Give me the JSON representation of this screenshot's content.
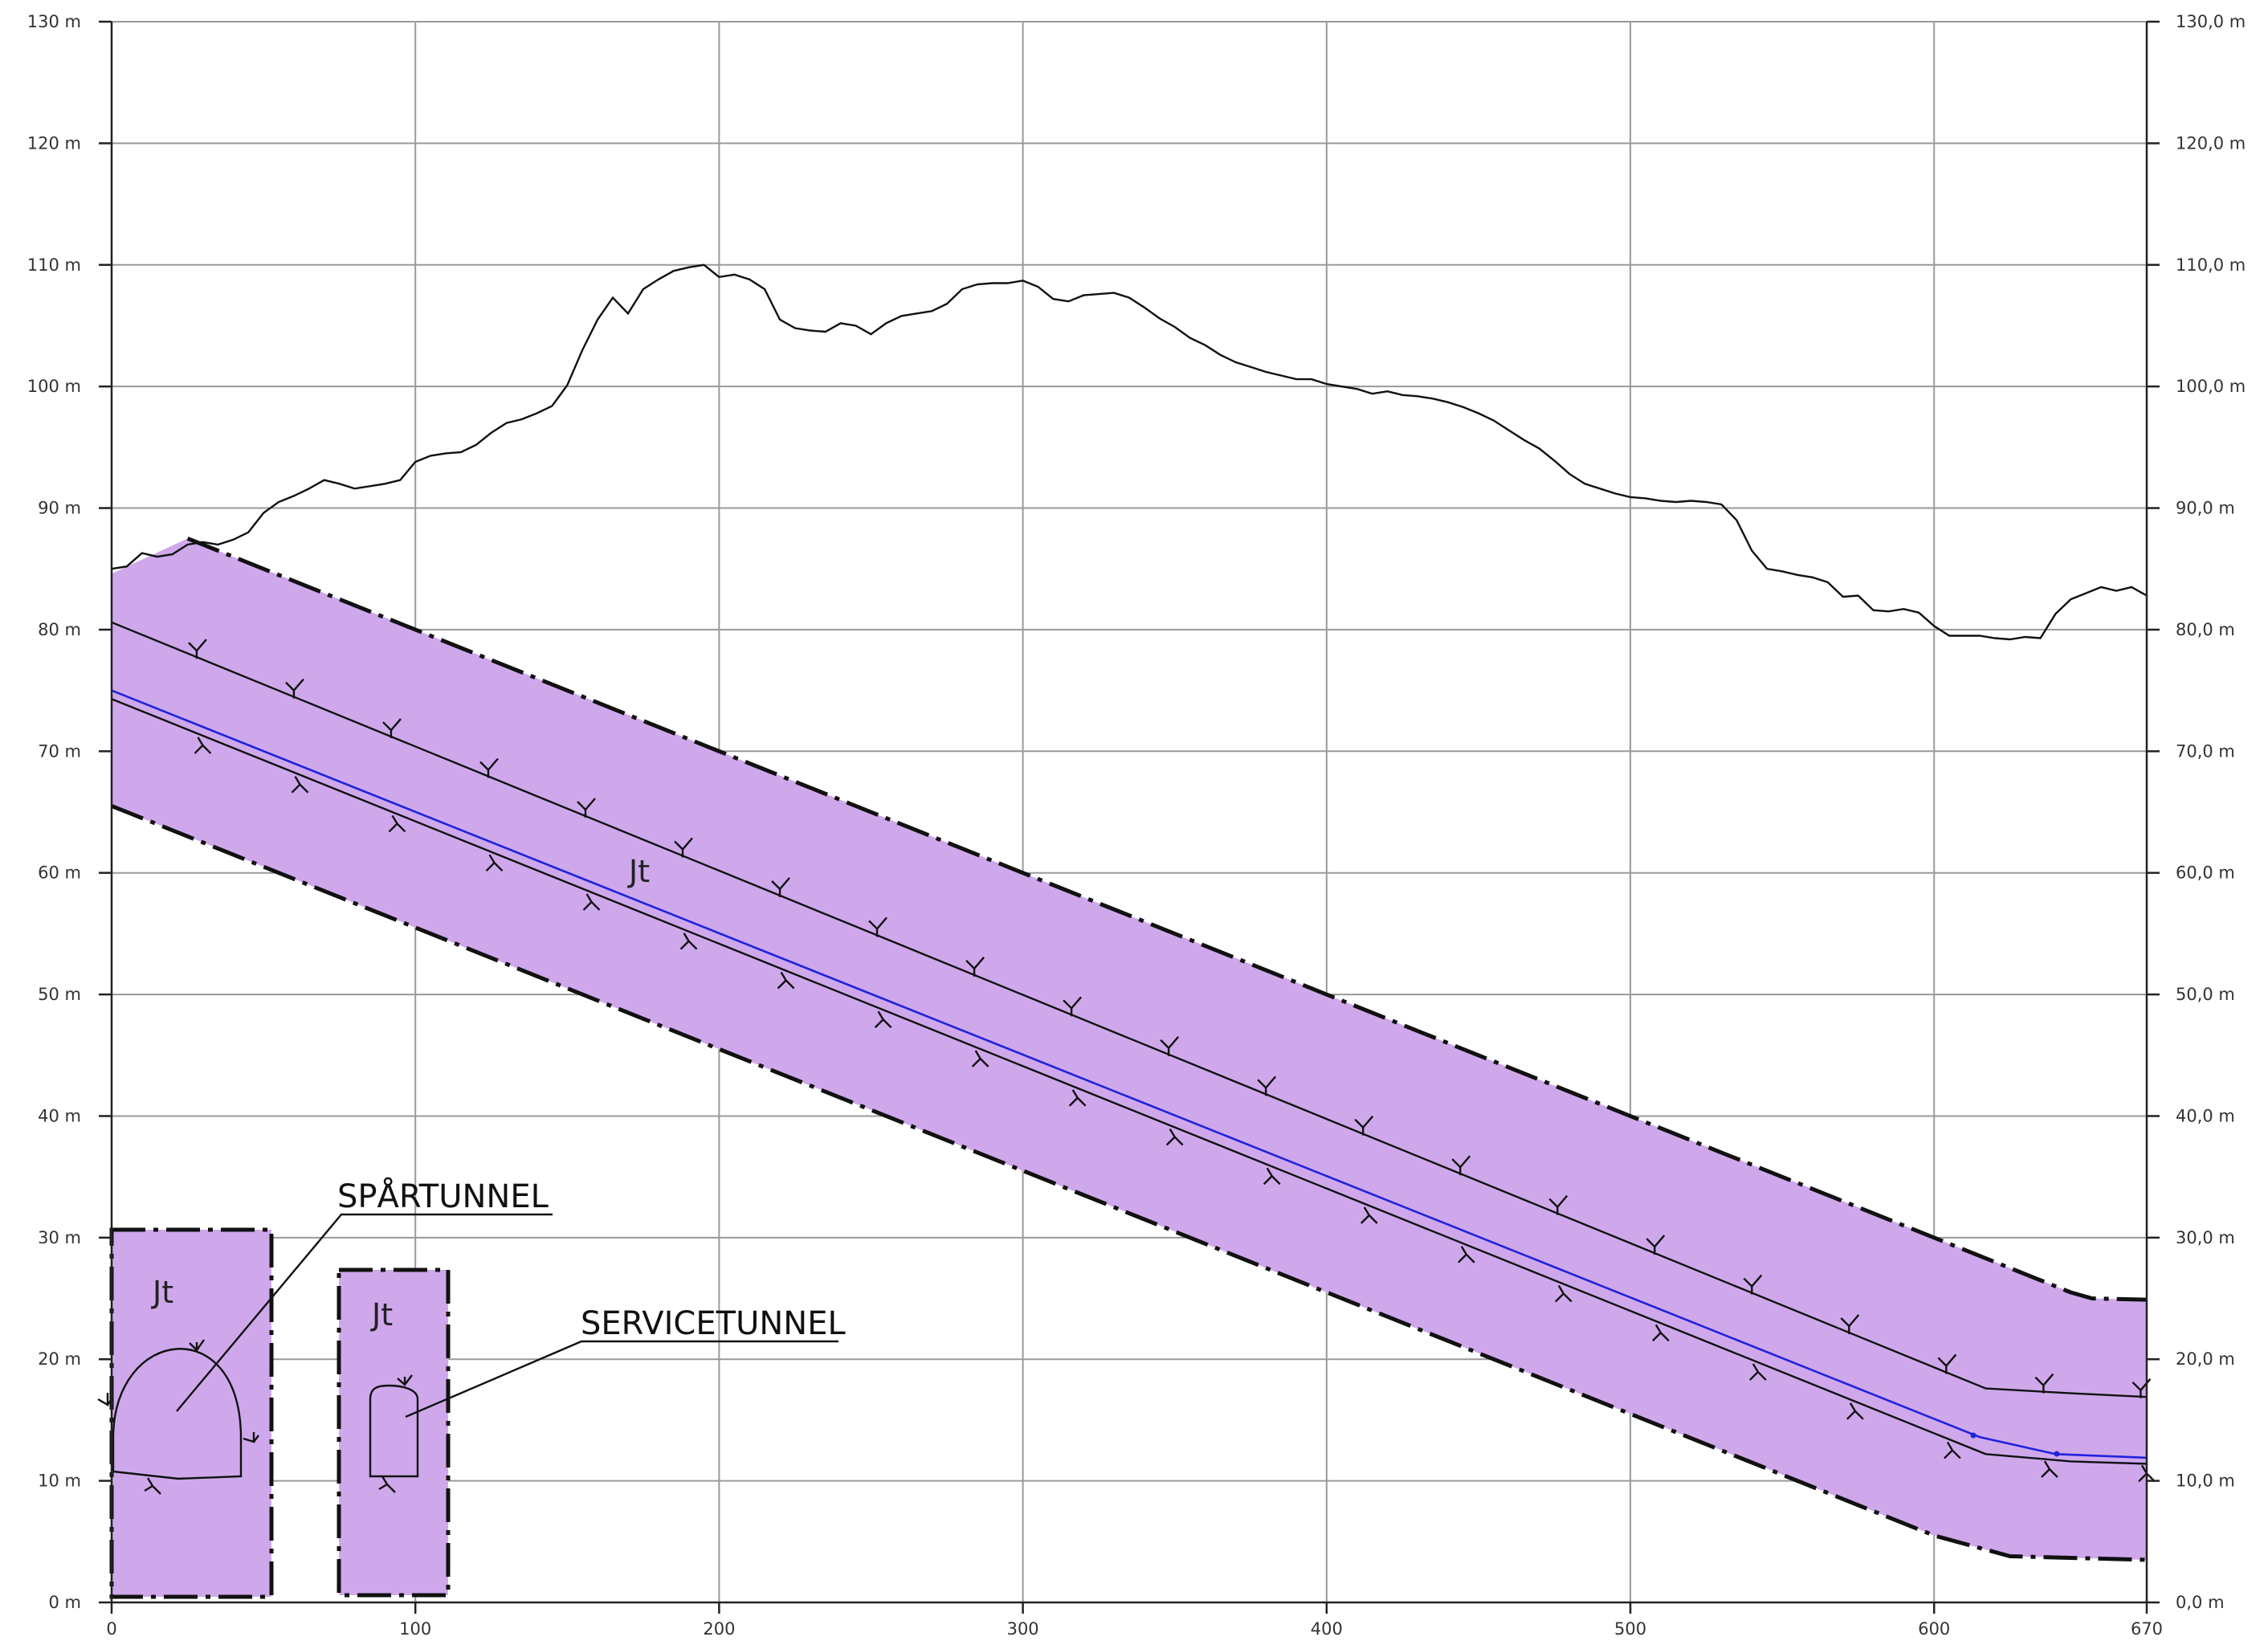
{
  "chart_data": {
    "type": "line",
    "title": "",
    "xlabel": "",
    "ylabel": "",
    "xlim": [
      0,
      670
    ],
    "ylim": [
      0,
      130
    ],
    "x_ticks": [
      0,
      100,
      200,
      300,
      400,
      500,
      600,
      670
    ],
    "y_ticks": [
      0,
      10,
      20,
      30,
      40,
      50,
      60,
      70,
      80,
      90,
      100,
      110,
      120,
      130
    ],
    "y_tick_labels_left": [
      "0 m",
      "10 m",
      "20 m",
      "30 m",
      "40 m",
      "50 m",
      "60 m",
      "70 m",
      "80 m",
      "90 m",
      "100 m",
      "110 m",
      "120 m",
      "130 m"
    ],
    "y_tick_labels_right": [
      "0,0 m",
      "10,0 m",
      "20,0 m",
      "30,0 m",
      "40,0 m",
      "50,0 m",
      "60,0 m",
      "70,0 m",
      "80,0 m",
      "90,0 m",
      "100,0 m",
      "110,0 m",
      "120,0 m",
      "130,0 m"
    ],
    "grid": true,
    "terrain_surface": {
      "x": [
        0,
        5,
        10,
        15,
        20,
        25,
        30,
        35,
        40,
        45,
        50,
        55,
        60,
        65,
        70,
        75,
        80,
        85,
        90,
        95,
        100,
        105,
        110,
        115,
        120,
        125,
        130,
        135,
        140,
        145,
        150,
        155,
        160,
        165,
        170,
        175,
        180,
        185,
        190,
        195,
        200,
        205,
        210,
        215,
        220,
        225,
        230,
        235,
        240,
        245,
        250,
        255,
        260,
        265,
        270,
        275,
        280,
        285,
        290,
        295,
        300,
        305,
        310,
        315,
        320,
        325,
        330,
        335,
        340,
        345,
        350,
        355,
        360,
        365,
        370,
        375,
        380,
        385,
        390,
        395,
        400,
        405,
        410,
        415,
        420,
        425,
        430,
        435,
        440,
        445,
        450,
        455,
        460,
        465,
        470,
        475,
        480,
        485,
        490,
        495,
        500,
        505,
        510,
        515,
        520,
        525,
        530,
        535,
        540,
        545,
        550,
        555,
        560,
        565,
        570,
        575,
        580,
        585,
        590,
        595,
        600,
        605,
        610,
        615,
        620,
        625,
        630,
        635,
        640,
        645,
        650,
        655,
        660,
        665,
        670
      ],
      "y": [
        85,
        85.2,
        86.3,
        86,
        86.2,
        87,
        87.2,
        87,
        87.4,
        88,
        89.6,
        90.5,
        91,
        91.6,
        92.3,
        92,
        91.6,
        91.8,
        92,
        92.3,
        93.8,
        94.3,
        94.5,
        94.6,
        95.2,
        96.2,
        97,
        97.3,
        97.8,
        98.4,
        100.1,
        103,
        105.5,
        107.3,
        106,
        108,
        108.8,
        109.5,
        109.8,
        110,
        109,
        109.2,
        108.8,
        108,
        105.5,
        104.8,
        104.6,
        104.5,
        105.2,
        105,
        104.3,
        105.2,
        105.8,
        106,
        106.2,
        106.8,
        108,
        108.4,
        108.5,
        108.5,
        108.7,
        108.2,
        107.2,
        107,
        107.5,
        107.6,
        107.7,
        107.3,
        106.5,
        105.6,
        104.9,
        104,
        103.4,
        102.6,
        102,
        101.6,
        101.2,
        100.9,
        100.6,
        100.6,
        100.2,
        100,
        99.8,
        99.4,
        99.6,
        99.3,
        99.2,
        99,
        98.7,
        98.3,
        97.8,
        97.2,
        96.4,
        95.6,
        94.9,
        93.9,
        92.8,
        92,
        91.6,
        91.2,
        90.9,
        90.8,
        90.6,
        90.5,
        90.6,
        90.5,
        90.3,
        89,
        86.5,
        85,
        84.8,
        84.5,
        84.3,
        83.9,
        82.7,
        82.8,
        81.6,
        81.5,
        81.7,
        81.4,
        80.3,
        79.5,
        79.5,
        79.5,
        79.3,
        79.2,
        79.4,
        79.3,
        81.3,
        82.5,
        83,
        83.5,
        83.2,
        83.5,
        82.8
      ]
    },
    "tunnel_crown": {
      "x": [
        0,
        617,
        645,
        670
      ],
      "y": [
        80.6,
        17.6,
        17.2,
        16.9
      ]
    },
    "tunnel_invert": {
      "x": [
        0,
        617,
        645,
        670
      ],
      "y": [
        74.3,
        12.2,
        11.6,
        11.4
      ]
    },
    "track_profile": {
      "x": [
        0,
        615,
        640,
        670
      ],
      "y": [
        75,
        13.6,
        12.2,
        11.9
      ]
    },
    "rock_zone_upper_boundary": {
      "x": [
        0,
        25,
        645,
        652,
        670
      ],
      "y": [
        84.6,
        87.5,
        25.5,
        25,
        24.9
      ]
    },
    "rock_zone_lower_boundary": {
      "x": [
        0,
        600,
        625,
        670
      ],
      "y": [
        65.5,
        5.5,
        3.8,
        3.5
      ]
    },
    "rock_type_code": "Jt",
    "callouts": [
      "SPÅRTUNNEL",
      "SERVICETUNNEL"
    ]
  },
  "labels": {
    "rock_code_main": "Jt",
    "rock_code_spartunnel": "Jt",
    "rock_code_servicetunnel": "Jt",
    "spartunnel": "SPÅRTUNNEL",
    "servicetunnel": "SERVICETUNNEL"
  },
  "colors": {
    "rock_zone": "#cfa8ec",
    "track_line": "#2222dd",
    "grid": "#9a9a9a"
  }
}
